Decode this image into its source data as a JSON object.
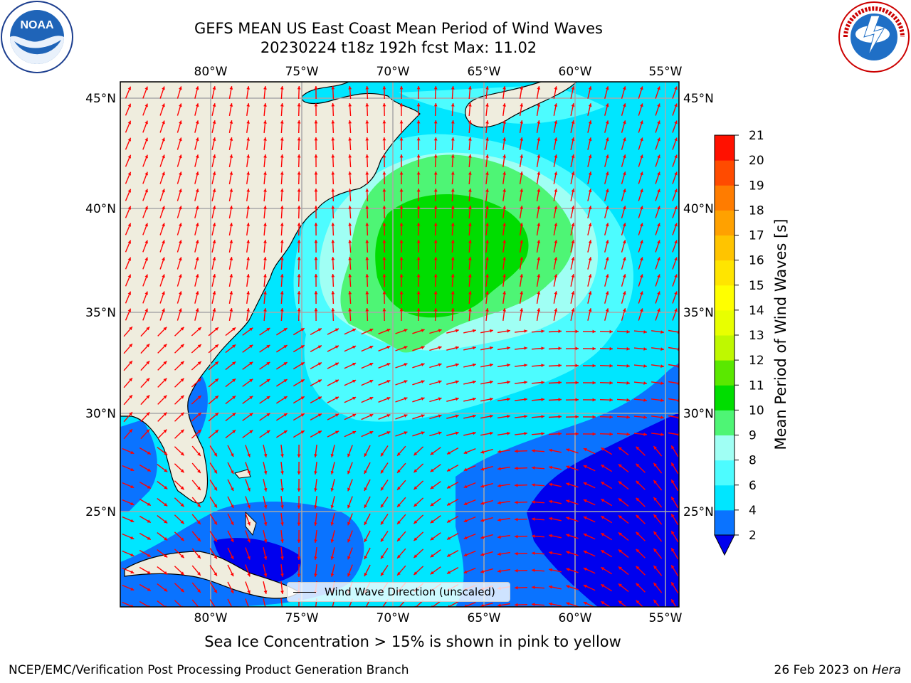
{
  "title_line1": "GEFS MEAN US East Coast Mean Period of Wind Waves",
  "title_line2": "20230224 t18z 192h fcst   Max: 11.02",
  "logos": {
    "left": "NOAA",
    "right": "NATIONAL WEATHER SERVICE"
  },
  "map": {
    "lon_ticks": [
      "80°W",
      "75°W",
      "70°W",
      "65°W",
      "60°W",
      "55°W"
    ],
    "lat_ticks": [
      "45°N",
      "40°N",
      "35°N",
      "30°N",
      "25°N"
    ],
    "land_color": "#efedde",
    "arrow_color": "#ff0000"
  },
  "legend": {
    "label": "Wind Wave Direction (unscaled)"
  },
  "colorbar": {
    "label": "Mean Period of Wind Waves [s]",
    "levels": [
      "2",
      "4",
      "6",
      "8",
      "9",
      "10",
      "11",
      "12",
      "13",
      "14",
      "15",
      "16",
      "17",
      "18",
      "19",
      "20",
      "21"
    ],
    "colors": [
      "#0a73ff",
      "#00e6ff",
      "#4dfcff",
      "#a0fff4",
      "#4ef575",
      "#00dd00",
      "#5ae800",
      "#bff800",
      "#e8ff00",
      "#ffff00",
      "#ffe500",
      "#ffc400",
      "#ffa100",
      "#ff7c00",
      "#ff4b00",
      "#ff1100"
    ],
    "under_color": "#0000ee"
  },
  "subcaption": "Sea Ice Concentration > 15% is shown in pink to yellow",
  "footer_left": "NCEP/EMC/Verification Post Processing Product Generation Branch",
  "footer_right_date": "26 Feb 2023 on ",
  "footer_right_host": "Hera"
}
